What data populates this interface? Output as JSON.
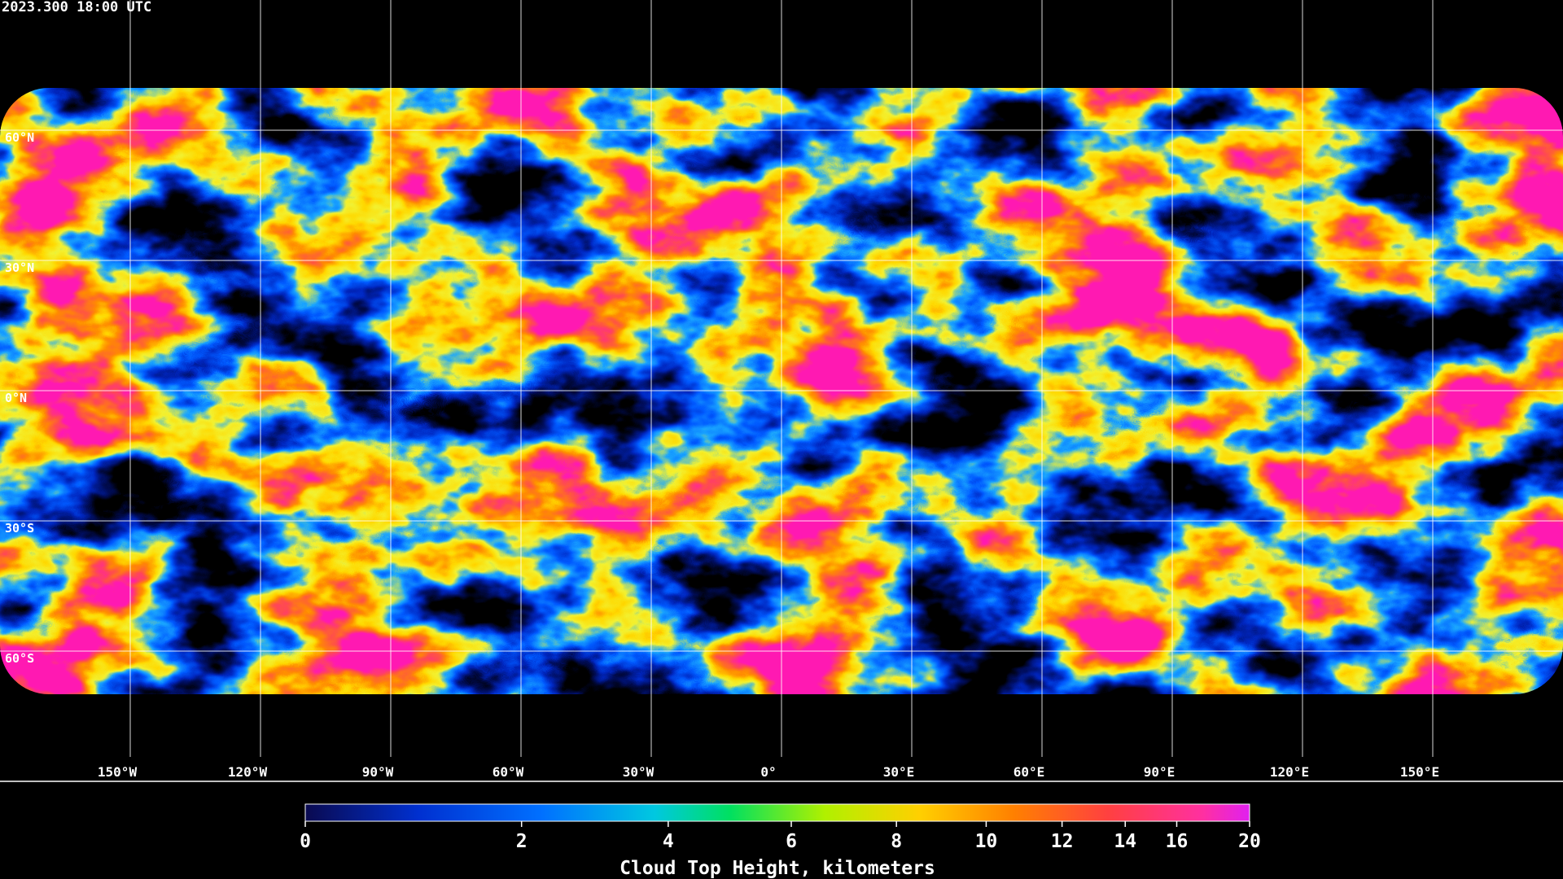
{
  "map": {
    "timestamp": "2023.300 18:00 UTC",
    "lat_lines": [
      {
        "value": 60,
        "label": "60°N"
      },
      {
        "value": 30,
        "label": "30°N"
      },
      {
        "value": 0,
        "label": "0°N"
      },
      {
        "value": -30,
        "label": "30°S"
      },
      {
        "value": -60,
        "label": "60°S"
      }
    ],
    "lon_lines": [
      {
        "value": -150,
        "label": "150°W"
      },
      {
        "value": -120,
        "label": "120°W"
      },
      {
        "value": -90,
        "label": "90°W"
      },
      {
        "value": -60,
        "label": "60°W"
      },
      {
        "value": -30,
        "label": "30°W"
      },
      {
        "value": 0,
        "label": "0°"
      },
      {
        "value": 30,
        "label": "30°E"
      },
      {
        "value": 60,
        "label": "60°E"
      },
      {
        "value": 90,
        "label": "90°E"
      },
      {
        "value": 120,
        "label": "120°E"
      },
      {
        "value": 150,
        "label": "150°E"
      }
    ]
  },
  "colorbar": {
    "label": "Cloud Top Height, kilometers",
    "range": [
      0,
      20
    ],
    "ticks": [
      0,
      2,
      4,
      6,
      8,
      10,
      12,
      14,
      16,
      20
    ]
  }
}
